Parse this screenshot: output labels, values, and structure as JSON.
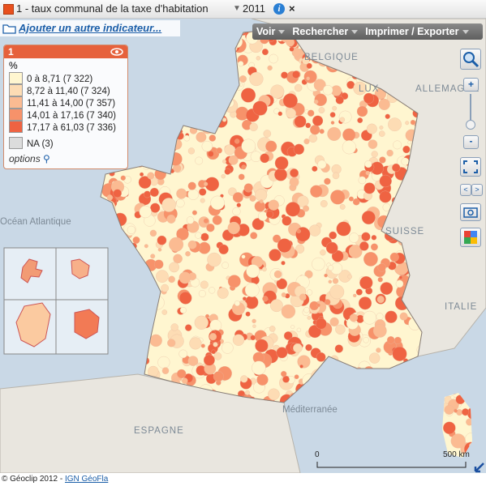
{
  "header": {
    "title": "1 - taux communal de la taxe d'habitation",
    "year": "2011",
    "info": "i",
    "close": "×"
  },
  "add_indicator": "Ajouter un autre indicateur...",
  "toolbar": [
    "Voir",
    "Rechercher",
    "Imprimer / Exporter"
  ],
  "legend": {
    "number": "1",
    "unit": "%",
    "items": [
      {
        "label": "0 à 8,71 (7 322)",
        "color": "#fff6d0"
      },
      {
        "label": "8,72 à 11,40 (7 324)",
        "color": "#fddcb4"
      },
      {
        "label": "11,41 à 14,00 (7 357)",
        "color": "#fbbb92"
      },
      {
        "label": "14,01 à 17,16 (7 340)",
        "color": "#f7926a"
      },
      {
        "label": "17,17 à 61,03 (7 336)",
        "color": "#ef6342"
      },
      {
        "label": "NA (3)",
        "color": "#dcdcdc"
      }
    ],
    "options": "options"
  },
  "map_labels": [
    "BELGIQUE",
    "LUX",
    "ALLEMAGNE",
    "Océan Atlantique",
    "SUISSE",
    "ITALIE",
    "ESPAGNE",
    "Méditerranée"
  ],
  "scale": {
    "start": "0",
    "end": "500 km"
  },
  "footer": {
    "text": "© Géoclip 2012 -",
    "link": "IGN GéoFla"
  }
}
